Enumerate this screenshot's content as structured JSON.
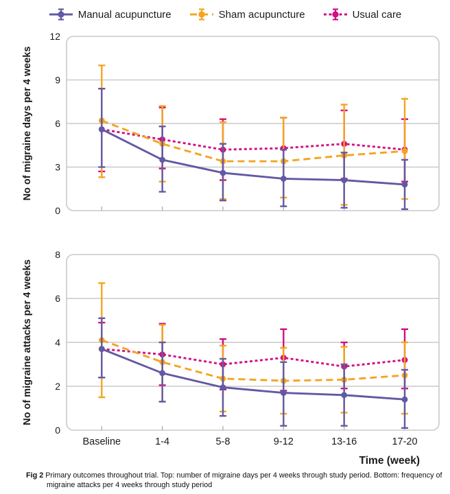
{
  "figure": {
    "caption_tag": "Fig 2",
    "caption_text": " Primary outcomes throughout trial. Top: number of migraine days per 4 weeks through study period. Bottom: frequency of migraine attacks per 4 weeks through study period",
    "x_axis_label": "Time (week)"
  },
  "colors": {
    "manual": "#6159a4",
    "sham": "#f4a41f",
    "usual": "#d10f82",
    "grid": "#c9c9c9",
    "tick": "#b5b5b5",
    "text": "#1a1a1a"
  },
  "legend": {
    "items": [
      {
        "label": "Manual acupuncture",
        "color": "#6159a4",
        "style": "solid"
      },
      {
        "label": "Sham acupuncture",
        "color": "#f4a41f",
        "style": "dashed"
      },
      {
        "label": "Usual care",
        "color": "#d10f82",
        "style": "dotted"
      }
    ]
  },
  "chart_data": [
    {
      "type": "line",
      "title": "",
      "ylabel": "No of migraine days per 4 weeks",
      "xlabel": "",
      "categories": [
        "Baseline",
        "1-4",
        "5-8",
        "9-12",
        "13-16",
        "17-20"
      ],
      "ylim": [
        0,
        12
      ],
      "yticks": [
        0,
        3,
        6,
        9,
        12
      ],
      "grid": true,
      "error_bars": true,
      "legend_position": "top",
      "series": [
        {
          "name": "Manual acupuncture",
          "color": "#6159a4",
          "line_style": "solid",
          "values": [
            5.6,
            3.5,
            2.6,
            2.2,
            2.1,
            1.8
          ],
          "ci_low": [
            3.0,
            1.3,
            0.7,
            0.3,
            0.2,
            0.1
          ],
          "ci_high": [
            8.4,
            5.8,
            4.6,
            4.2,
            4.0,
            3.5
          ]
        },
        {
          "name": "Sham acupuncture",
          "color": "#f4a41f",
          "line_style": "dashed",
          "values": [
            6.2,
            4.6,
            3.4,
            3.4,
            3.8,
            4.1
          ],
          "ci_low": [
            2.3,
            2.0,
            0.8,
            0.9,
            0.4,
            0.8
          ],
          "ci_high": [
            10.0,
            7.2,
            6.1,
            6.4,
            7.3,
            7.7
          ]
        },
        {
          "name": "Usual care",
          "color": "#d10f82",
          "line_style": "dotted",
          "values": [
            5.6,
            4.9,
            4.2,
            4.3,
            4.6,
            4.2
          ],
          "ci_low": [
            2.7,
            2.9,
            2.1,
            2.2,
            2.2,
            2.0
          ],
          "ci_high": [
            8.4,
            7.1,
            6.3,
            6.4,
            6.9,
            6.3
          ]
        }
      ]
    },
    {
      "type": "line",
      "title": "",
      "ylabel": "No of migraine attacks per 4 weeks",
      "xlabel": "Time (week)",
      "categories": [
        "Baseline",
        "1-4",
        "5-8",
        "9-12",
        "13-16",
        "17-20"
      ],
      "ylim": [
        0,
        8
      ],
      "yticks": [
        0,
        2,
        4,
        6,
        8
      ],
      "grid": true,
      "error_bars": true,
      "series": [
        {
          "name": "Manual acupuncture",
          "color": "#6159a4",
          "line_style": "solid",
          "values": [
            3.7,
            2.6,
            1.95,
            1.7,
            1.6,
            1.4
          ],
          "ci_low": [
            2.4,
            1.3,
            0.65,
            0.2,
            0.2,
            0.1
          ],
          "ci_high": [
            5.1,
            4.0,
            3.25,
            3.1,
            3.0,
            2.75
          ]
        },
        {
          "name": "Sham acupuncture",
          "color": "#f4a41f",
          "line_style": "dashed",
          "values": [
            4.1,
            3.1,
            2.35,
            2.25,
            2.3,
            2.5
          ],
          "ci_low": [
            1.5,
            1.3,
            0.85,
            0.75,
            0.8,
            0.75
          ],
          "ci_high": [
            6.7,
            4.8,
            3.85,
            3.75,
            3.8,
            4.0
          ]
        },
        {
          "name": "Usual care",
          "color": "#d10f82",
          "line_style": "dotted",
          "values": [
            3.7,
            3.45,
            3.0,
            3.3,
            2.9,
            3.2
          ],
          "ci_low": [
            2.4,
            2.05,
            1.85,
            1.8,
            1.9,
            1.9
          ],
          "ci_high": [
            4.9,
            4.85,
            4.15,
            4.6,
            4.0,
            4.6
          ]
        }
      ]
    }
  ]
}
